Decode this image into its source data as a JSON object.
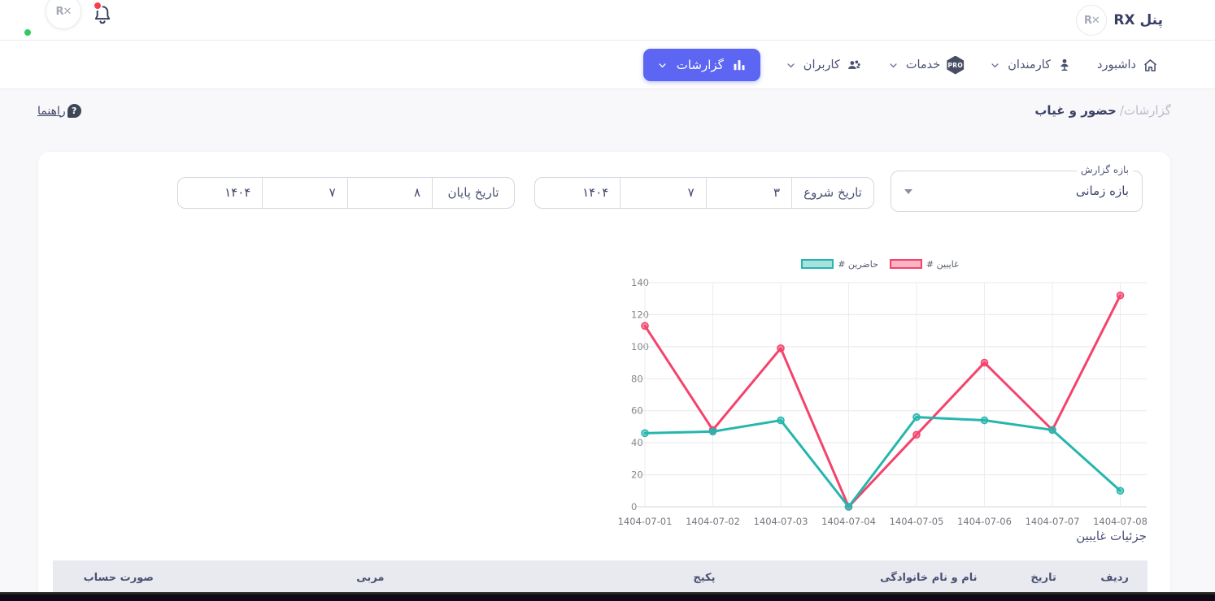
{
  "header": {
    "app_title": "پنل RX"
  },
  "nav": {
    "items": [
      {
        "name": "dashboard",
        "label": "داشبورد",
        "icon": "home",
        "chevron": false,
        "active": false
      },
      {
        "name": "employees",
        "label": "کارمندان",
        "icon": "employee",
        "chevron": true,
        "active": false
      },
      {
        "name": "services",
        "label": "خدمات",
        "badge": "PRO",
        "chevron": true,
        "active": false
      },
      {
        "name": "users",
        "label": "کاربران",
        "icon": "users",
        "chevron": true,
        "active": false
      },
      {
        "name": "reports",
        "label": "گزارشات",
        "icon": "chart",
        "chevron": true,
        "active": true
      }
    ]
  },
  "breadcrumb": {
    "section": "گزارشات/",
    "current": "حضور و غیاب"
  },
  "help": {
    "label": "راهنما"
  },
  "filters": {
    "report_range": {
      "label": "بازه گزارش",
      "value": "بازه زمانی"
    },
    "start_date": {
      "label": "تاریخ شروع",
      "day": "۳",
      "month": "۷",
      "year": "۱۴۰۴"
    },
    "end_date": {
      "label": "تاریخ پایان",
      "day": "۸",
      "month": "۷",
      "year": "۱۴۰۴"
    }
  },
  "chart_data": {
    "type": "line",
    "x": [
      "1404-07-01",
      "1404-07-02",
      "1404-07-03",
      "1404-07-04",
      "1404-07-05",
      "1404-07-06",
      "1404-07-07",
      "1404-07-08"
    ],
    "series": [
      {
        "name": "# غایبین",
        "color": "#f4436c",
        "values": [
          113,
          48,
          99,
          0,
          45,
          90,
          48,
          132
        ]
      },
      {
        "name": "# حاضرین",
        "color": "#26b6ad",
        "values": [
          46,
          47,
          54,
          0,
          56,
          54,
          48,
          10
        ]
      }
    ],
    "ylim": [
      0,
      140
    ],
    "yticks": [
      0,
      20,
      40,
      60,
      80,
      100,
      120,
      140
    ],
    "grid": true,
    "legend_position": "top"
  },
  "details": {
    "title": "جزئیات غایبین",
    "table": {
      "headers": [
        "ردیف",
        "تاریخ",
        "نام و نام خانوادگی",
        "پکیج",
        "مربی",
        "صورت حساب"
      ]
    }
  },
  "colors": {
    "accent": "#5c66f3",
    "absent_line": "#f4436c",
    "present_line": "#26b6ad",
    "notification_red": "#f4404e",
    "online_green": "#2ecc5e"
  }
}
